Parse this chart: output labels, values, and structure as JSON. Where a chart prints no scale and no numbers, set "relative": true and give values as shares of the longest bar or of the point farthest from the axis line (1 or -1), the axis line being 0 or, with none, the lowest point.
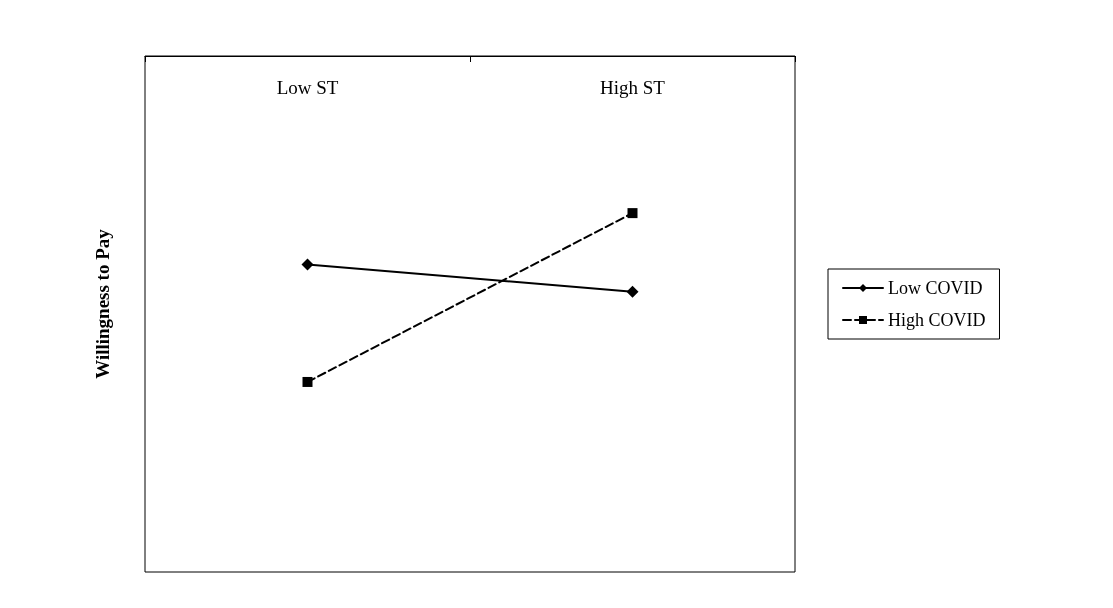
{
  "chart_data": {
    "type": "line",
    "relative": true,
    "ylabel": "Willingness to Pay",
    "categories": [
      "Low ST",
      "High ST"
    ],
    "series": [
      {
        "name": "Low COVID",
        "color": "#000000",
        "values": [
          -0.64,
          -0.723
        ],
        "marker": "diamond",
        "line_style": "solid"
      },
      {
        "name": "High COVID",
        "color": "#000000",
        "values": [
          -1,
          -0.482
        ],
        "marker": "square",
        "line_style": "dashed"
      }
    ],
    "legend": "right",
    "grid": false
  }
}
